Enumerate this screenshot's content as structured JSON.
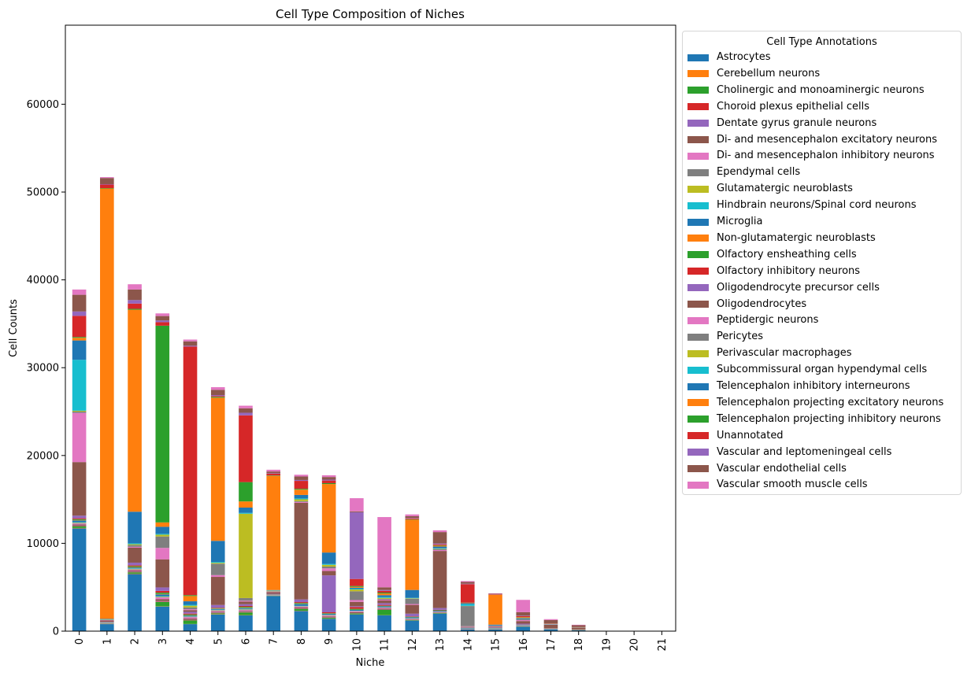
{
  "chart_data": {
    "type": "bar",
    "stacked": true,
    "title": "Cell Type Composition of Niches",
    "xlabel": "Niche",
    "ylabel": "Cell Counts",
    "ylim": [
      0,
      69000
    ],
    "yticks": [
      0,
      10000,
      20000,
      30000,
      40000,
      50000,
      60000
    ],
    "grid": false,
    "legend": {
      "title": "Cell Type Annotations",
      "placement": "outside-right"
    },
    "categories": [
      "0",
      "1",
      "2",
      "3",
      "4",
      "5",
      "6",
      "7",
      "8",
      "9",
      "10",
      "11",
      "12",
      "13",
      "14",
      "15",
      "16",
      "17",
      "18",
      "19",
      "20",
      "21"
    ],
    "series": [
      {
        "name": "Astrocytes",
        "color": "#1f77b4",
        "values": [
          11700,
          800,
          6500,
          2800,
          800,
          1900,
          1800,
          4000,
          2300,
          1400,
          1900,
          1800,
          1200,
          2000,
          200,
          200,
          500,
          200,
          100,
          30,
          20,
          10
        ]
      },
      {
        "name": "Cerebellum neurons",
        "color": "#ff7f0e",
        "values": [
          50,
          10,
          50,
          30,
          20,
          40,
          30,
          10,
          30,
          20,
          20,
          20,
          20,
          20,
          10,
          10,
          10,
          5,
          5,
          0,
          0,
          0
        ]
      },
      {
        "name": "Cholinergic and monoaminergic neurons",
        "color": "#2ca02c",
        "values": [
          200,
          30,
          150,
          500,
          400,
          100,
          300,
          20,
          200,
          100,
          100,
          600,
          50,
          50,
          10,
          10,
          30,
          10,
          10,
          0,
          0,
          0
        ]
      },
      {
        "name": "Choroid plexus epithelial cells",
        "color": "#d62728",
        "values": [
          50,
          10,
          50,
          50,
          30,
          40,
          40,
          10,
          30,
          30,
          20,
          20,
          20,
          10,
          10,
          10,
          10,
          5,
          5,
          0,
          0,
          0
        ]
      },
      {
        "name": "Dentate gyrus granule neurons",
        "color": "#9467bd",
        "values": [
          50,
          10,
          50,
          50,
          30,
          40,
          40,
          10,
          30,
          30,
          20,
          20,
          20,
          10,
          10,
          10,
          10,
          5,
          5,
          0,
          0,
          0
        ]
      },
      {
        "name": "Di- and mesencephalon excitatory neurons",
        "color": "#8c564b",
        "values": [
          100,
          20,
          100,
          200,
          150,
          100,
          100,
          20,
          100,
          100,
          100,
          100,
          50,
          50,
          20,
          10,
          30,
          10,
          10,
          0,
          0,
          0
        ]
      },
      {
        "name": "Di- and mesencephalon inhibitory neurons",
        "color": "#e377c2",
        "values": [
          100,
          20,
          100,
          200,
          150,
          100,
          100,
          20,
          100,
          100,
          100,
          100,
          50,
          50,
          20,
          10,
          30,
          10,
          10,
          0,
          0,
          0
        ]
      },
      {
        "name": "Ependymal cells",
        "color": "#7f7f7f",
        "values": [
          50,
          10,
          50,
          50,
          30,
          40,
          40,
          10,
          30,
          30,
          20,
          20,
          20,
          10,
          10,
          10,
          10,
          5,
          5,
          0,
          0,
          0
        ]
      },
      {
        "name": "Glutamatergic neuroblasts",
        "color": "#bcbd22",
        "values": [
          50,
          10,
          50,
          50,
          30,
          40,
          40,
          10,
          30,
          30,
          20,
          20,
          20,
          10,
          10,
          10,
          10,
          5,
          5,
          0,
          0,
          0
        ]
      },
      {
        "name": "Hindbrain neurons/Spinal cord neurons",
        "color": "#17becf",
        "values": [
          50,
          10,
          50,
          50,
          30,
          40,
          40,
          10,
          30,
          30,
          20,
          20,
          20,
          10,
          10,
          10,
          10,
          5,
          5,
          0,
          0,
          0
        ]
      },
      {
        "name": "Microglia",
        "color": "#1f77b4",
        "values": [
          200,
          30,
          100,
          200,
          100,
          100,
          100,
          30,
          200,
          100,
          100,
          100,
          100,
          100,
          50,
          50,
          50,
          20,
          10,
          0,
          0,
          0
        ]
      },
      {
        "name": "Non-glutamatergic neuroblasts",
        "color": "#ff7f0e",
        "values": [
          50,
          10,
          50,
          50,
          30,
          40,
          40,
          10,
          30,
          30,
          20,
          20,
          20,
          10,
          10,
          10,
          10,
          5,
          5,
          0,
          0,
          0
        ]
      },
      {
        "name": "Olfactory ensheathing cells",
        "color": "#2ca02c",
        "values": [
          100,
          20,
          100,
          150,
          100,
          50,
          100,
          20,
          100,
          50,
          100,
          50,
          50,
          50,
          20,
          10,
          20,
          10,
          5,
          0,
          0,
          0
        ]
      },
      {
        "name": "Olfactory inhibitory neurons",
        "color": "#d62728",
        "values": [
          100,
          20,
          100,
          200,
          100,
          50,
          100,
          20,
          100,
          100,
          200,
          100,
          50,
          50,
          20,
          10,
          20,
          10,
          5,
          0,
          0,
          0
        ]
      },
      {
        "name": "Oligodendrocyte precursor cells",
        "color": "#9467bd",
        "values": [
          300,
          50,
          300,
          400,
          200,
          300,
          200,
          50,
          300,
          4200,
          100,
          200,
          300,
          200,
          50,
          50,
          100,
          20,
          10,
          0,
          0,
          0
        ]
      },
      {
        "name": "Oligodendrocytes",
        "color": "#8c564b",
        "values": [
          6100,
          150,
          1700,
          3200,
          200,
          3200,
          300,
          200,
          11000,
          500,
          500,
          300,
          1000,
          6500,
          50,
          100,
          300,
          400,
          200,
          0,
          0,
          0
        ]
      },
      {
        "name": "Peptidergic neurons",
        "color": "#e377c2",
        "values": [
          5600,
          50,
          100,
          1300,
          100,
          200,
          100,
          50,
          100,
          300,
          200,
          100,
          100,
          100,
          50,
          50,
          100,
          20,
          10,
          0,
          0,
          0
        ]
      },
      {
        "name": "Pericytes",
        "color": "#7f7f7f",
        "values": [
          150,
          30,
          200,
          1300,
          200,
          1300,
          300,
          50,
          100,
          200,
          1000,
          100,
          600,
          100,
          2300,
          50,
          100,
          20,
          10,
          0,
          0,
          0
        ]
      },
      {
        "name": "Perivascular macrophages",
        "color": "#bcbd22",
        "values": [
          100,
          30,
          100,
          200,
          200,
          100,
          9600,
          50,
          200,
          200,
          200,
          100,
          50,
          50,
          20,
          10,
          20,
          10,
          5,
          0,
          0,
          0
        ]
      },
      {
        "name": "Subcommissural organ hypendymal cells",
        "color": "#17becf",
        "values": [
          5800,
          30,
          100,
          100,
          100,
          100,
          100,
          30,
          100,
          100,
          100,
          100,
          50,
          50,
          200,
          10,
          20,
          10,
          5,
          0,
          0,
          0
        ]
      },
      {
        "name": "Telencephalon inhibitory interneurons",
        "color": "#1f77b4",
        "values": [
          2200,
          50,
          3600,
          800,
          400,
          2400,
          600,
          50,
          400,
          1300,
          100,
          200,
          900,
          200,
          100,
          100,
          100,
          20,
          10,
          0,
          0,
          0
        ]
      },
      {
        "name": "Telencephalon projecting excitatory neurons",
        "color": "#ff7f0e",
        "values": [
          300,
          49000,
          23000,
          500,
          600,
          16300,
          700,
          13000,
          600,
          7800,
          100,
          200,
          8000,
          100,
          50,
          3400,
          100,
          20,
          10,
          0,
          0,
          0
        ]
      },
      {
        "name": "Telencephalon projecting inhibitory neurons",
        "color": "#2ca02c",
        "values": [
          100,
          50,
          100,
          22400,
          100,
          100,
          2200,
          50,
          100,
          100,
          100,
          100,
          50,
          50,
          20,
          10,
          20,
          10,
          5,
          0,
          0,
          0
        ]
      },
      {
        "name": "Unannotated",
        "color": "#d62728",
        "values": [
          2400,
          400,
          600,
          400,
          28300,
          100,
          7600,
          200,
          900,
          300,
          800,
          200,
          100,
          100,
          2100,
          50,
          100,
          20,
          20,
          0,
          0,
          0
        ]
      },
      {
        "name": "Vascular and leptomeningeal cells",
        "color": "#9467bd",
        "values": [
          500,
          50,
          400,
          200,
          100,
          100,
          300,
          50,
          100,
          100,
          7600,
          100,
          50,
          100,
          50,
          10,
          50,
          10,
          5,
          0,
          0,
          0
        ]
      },
      {
        "name": "Vascular endothelial cells",
        "color": "#8c564b",
        "values": [
          1900,
          700,
          1200,
          500,
          500,
          600,
          500,
          200,
          400,
          300,
          100,
          300,
          200,
          1300,
          200,
          50,
          400,
          400,
          200,
          0,
          0,
          0
        ]
      },
      {
        "name": "Vascular smooth muscle cells",
        "color": "#e377c2",
        "values": [
          600,
          100,
          600,
          300,
          200,
          300,
          300,
          200,
          200,
          200,
          1500,
          8000,
          200,
          200,
          100,
          50,
          1400,
          100,
          50,
          0,
          0,
          0
        ]
      }
    ]
  }
}
